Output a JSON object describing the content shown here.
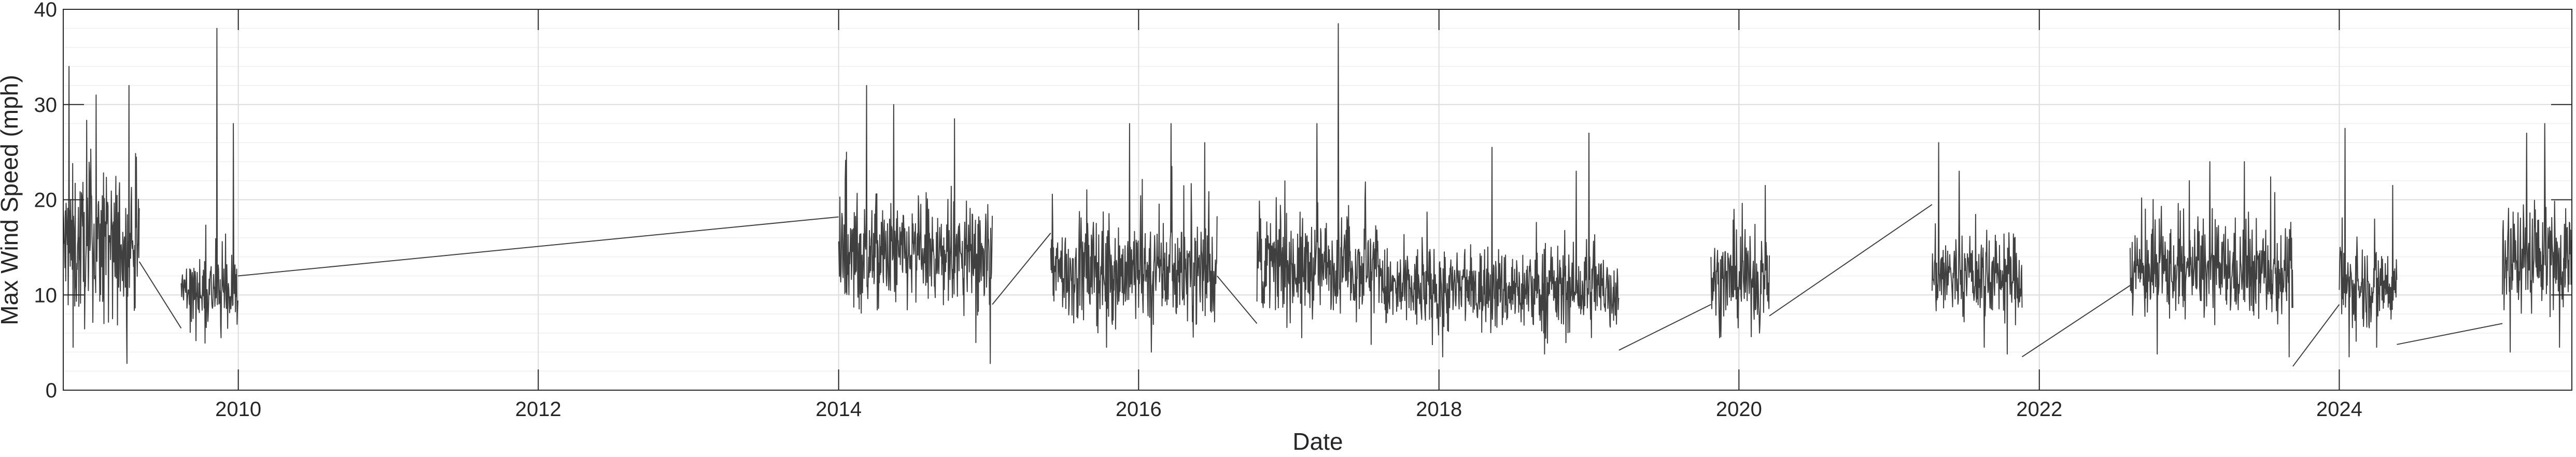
{
  "chart_data": {
    "type": "line",
    "title": "",
    "xlabel": "Date",
    "ylabel": "Max Wind Speed (mph)",
    "xlim": [
      "2008-11-01",
      "2025-07-20"
    ],
    "ylim": [
      0,
      40
    ],
    "x_ticks": [
      "2010",
      "2012",
      "2014",
      "2016",
      "2018",
      "2020",
      "2022",
      "2024"
    ],
    "y_ticks": [
      "0",
      "10",
      "20",
      "30",
      "40"
    ],
    "grid": true,
    "minor_grid": true,
    "line_color": "#404040",
    "series": [
      {
        "name": "",
        "segments": [
          {
            "start": "2008-11-01",
            "end": "2009-05-05",
            "mean": 15,
            "spread": 7,
            "peaks": [
              [
                "2008-11-15",
                34
              ],
              [
                "2009-01-20",
                31
              ],
              [
                "2009-04-10",
                32
              ]
            ],
            "lows": [
              [
                "2008-11-25",
                4.5
              ],
              [
                "2009-03-01",
                7.5
              ]
            ]
          },
          {
            "start": "2009-08-15",
            "end": "2009-12-31",
            "mean": 10.5,
            "spread": 3.5,
            "peaks": [
              [
                "2009-11-10",
                38
              ],
              [
                "2009-12-20",
                28
              ]
            ],
            "lows": [
              [
                "2009-09-20",
                5.2
              ],
              [
                "2009-11-20",
                5.5
              ]
            ]
          },
          {
            "start": "2014-01-01",
            "end": "2015-01-10",
            "mean": 14,
            "spread": 5,
            "peaks": [
              [
                "2014-03-10",
                32
              ],
              [
                "2014-05-15",
                30
              ],
              [
                "2014-10-10",
                28.5
              ]
            ],
            "lows": [
              [
                "2014-12-01",
                5.0
              ],
              [
                "2015-01-05",
                2.8
              ]
            ]
          },
          {
            "start": "2015-06-01",
            "end": "2016-07-10",
            "mean": 12.5,
            "spread": 5,
            "peaks": [
              [
                "2015-12-10",
                28
              ],
              [
                "2016-03-20",
                28
              ],
              [
                "2016-06-10",
                26
              ]
            ],
            "lows": [
              [
                "2015-10-15",
                4.5
              ],
              [
                "2016-02-01",
                4.0
              ]
            ]
          },
          {
            "start": "2016-10-15",
            "end": "2017-08-15",
            "mean": 13,
            "spread": 4.5,
            "peaks": [
              [
                "2017-05-01",
                38.5
              ],
              [
                "2017-03-10",
                28
              ]
            ],
            "lows": [
              [
                "2017-07-20",
                4.8
              ],
              [
                "2017-02-01",
                5.5
              ]
            ]
          },
          {
            "start": "2017-08-15",
            "end": "2019-03-15",
            "mean": 10.5,
            "spread": 4,
            "peaks": [
              [
                "2018-05-10",
                25.5
              ],
              [
                "2019-01-01",
                27
              ],
              [
                "2018-12-01",
                23
              ]
            ],
            "lows": [
              [
                "2018-01-10",
                3.5
              ],
              [
                "2018-09-15",
                3.8
              ]
            ]
          },
          {
            "start": "2019-10-25",
            "end": "2020-03-15",
            "mean": 11.5,
            "spread": 4,
            "peaks": [
              [
                "2019-12-20",
                19
              ],
              [
                "2020-03-05",
                21.5
              ]
            ],
            "lows": [
              [
                "2019-11-15",
                5.5
              ],
              [
                "2020-02-20",
                6.0
              ]
            ]
          },
          {
            "start": "2021-04-15",
            "end": "2021-11-20",
            "mean": 12,
            "spread": 4,
            "peaks": [
              [
                "2021-05-01",
                26
              ],
              [
                "2021-06-20",
                23
              ]
            ],
            "lows": [
              [
                "2021-08-20",
                4.5
              ],
              [
                "2021-10-15",
                3.8
              ]
            ]
          },
          {
            "start": "2022-08-10",
            "end": "2023-09-10",
            "mean": 12.5,
            "spread": 4.5,
            "peaks": [
              [
                "2023-02-20",
                24
              ],
              [
                "2023-05-15",
                24
              ],
              [
                "2023-01-01",
                22
              ]
            ],
            "lows": [
              [
                "2022-10-15",
                3.8
              ],
              [
                "2023-09-01",
                3.5
              ]
            ]
          },
          {
            "start": "2024-01-01",
            "end": "2024-05-20",
            "mean": 11,
            "spread": 4,
            "peaks": [
              [
                "2024-01-15",
                27.5
              ],
              [
                "2024-05-10",
                21.5
              ]
            ],
            "lows": [
              [
                "2024-01-25",
                3.5
              ],
              [
                "2024-04-01",
                4.5
              ]
            ]
          },
          {
            "start": "2025-02-01",
            "end": "2025-07-20",
            "mean": 14,
            "spread": 5,
            "peaks": [
              [
                "2025-05-15",
                28
              ],
              [
                "2025-04-01",
                27
              ]
            ],
            "lows": [
              [
                "2025-02-20",
                4.0
              ],
              [
                "2025-06-20",
                4.5
              ]
            ]
          }
        ],
        "gap_bridges": [
          {
            "from": [
              "2009-05-05",
              13.5
            ],
            "to": [
              "2009-08-15",
              6.5
            ]
          },
          {
            "from": [
              "2009-12-31",
              12.0
            ],
            "to": [
              "2014-01-01",
              18.2
            ]
          },
          {
            "from": [
              "2015-01-10",
              9.0
            ],
            "to": [
              "2015-06-01",
              16.5
            ]
          },
          {
            "from": [
              "2016-07-10",
              12.0
            ],
            "to": [
              "2016-10-15",
              7.0
            ]
          },
          {
            "from": [
              "2019-03-15",
              4.2
            ],
            "to": [
              "2019-10-25",
              9.0
            ]
          },
          {
            "from": [
              "2020-03-15",
              7.8
            ],
            "to": [
              "2021-04-15",
              19.5
            ]
          },
          {
            "from": [
              "2021-11-20",
              3.5
            ],
            "to": [
              "2022-08-10",
              11.0
            ]
          },
          {
            "from": [
              "2023-09-10",
              2.5
            ],
            "to": [
              "2024-01-01",
              9.0
            ]
          },
          {
            "from": [
              "2024-05-20",
              4.8
            ],
            "to": [
              "2025-02-01",
              7.0
            ]
          }
        ]
      }
    ]
  }
}
